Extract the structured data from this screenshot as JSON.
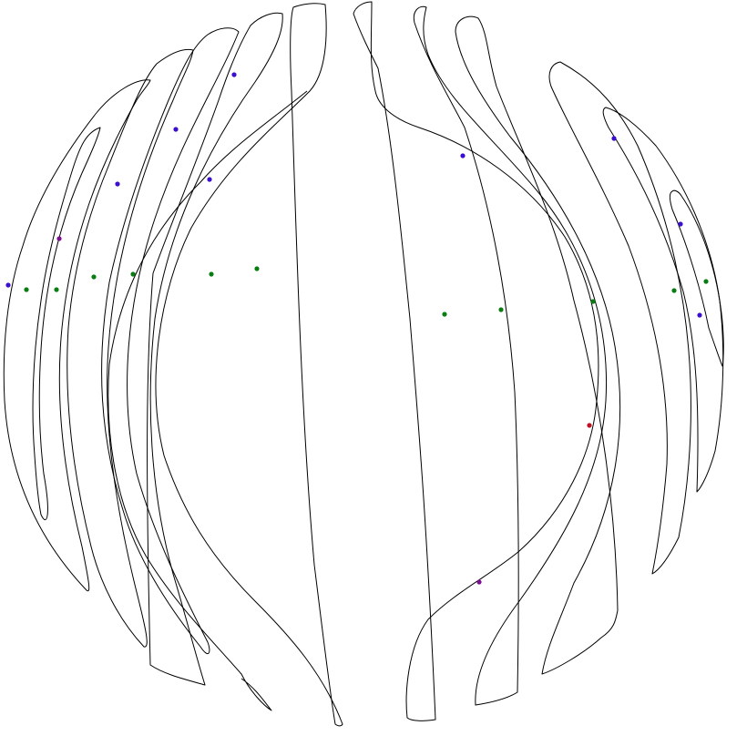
{
  "colors": {
    "background": "#ffffff",
    "stroke": "#000000",
    "dot_blue": "#3a0fd0",
    "dot_green": "#0a7d12",
    "dot_red": "#c21020",
    "dot_purple": "#7a1090"
  }
}
